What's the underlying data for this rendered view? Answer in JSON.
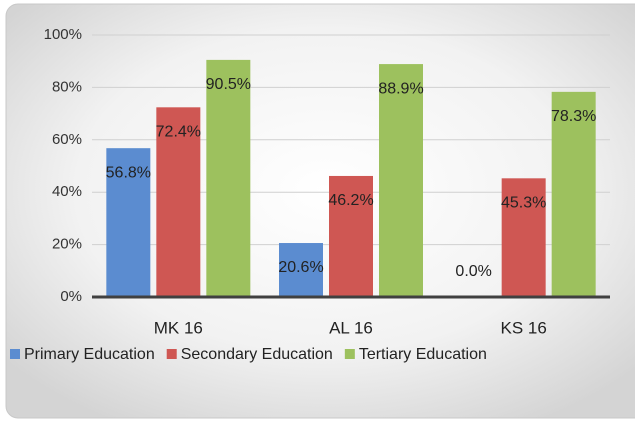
{
  "chart_data": {
    "type": "bar",
    "categories": [
      "MK 16",
      "AL 16",
      "KS 16"
    ],
    "series": [
      {
        "name": "Primary Education",
        "color": "#5b8cd0",
        "values": [
          56.8,
          20.6,
          0.0
        ],
        "value_labels": [
          "56.8%",
          "20.6%",
          "0.0%"
        ]
      },
      {
        "name": "Secondary Education",
        "color": "#cf5753",
        "values": [
          72.4,
          46.2,
          45.3
        ],
        "value_labels": [
          "72.4%",
          "46.2%",
          "45.3%"
        ]
      },
      {
        "name": "Tertiary Education",
        "color": "#9dc15e",
        "values": [
          90.5,
          88.9,
          78.3
        ],
        "value_labels": [
          "90.5%",
          "88.9%",
          "78.3%"
        ]
      }
    ],
    "ylim": [
      0,
      100
    ],
    "yticks": [
      {
        "value": 0,
        "label": "0%"
      },
      {
        "value": 20,
        "label": "20%"
      },
      {
        "value": 40,
        "label": "40%"
      },
      {
        "value": 60,
        "label": "60%"
      },
      {
        "value": 80,
        "label": "80%"
      },
      {
        "value": 100,
        "label": "100%"
      }
    ],
    "grid": true,
    "legend": "bottom"
  }
}
